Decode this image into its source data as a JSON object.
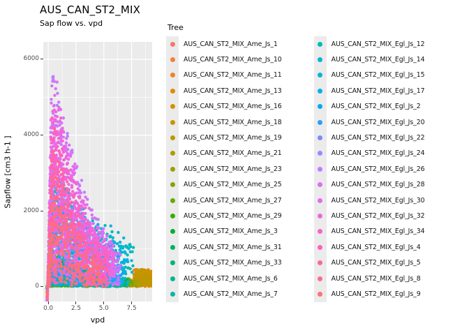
{
  "page": {
    "title": "AUS_CAN_ST2_MIX",
    "subtitle": "Sap flow vs. vpd"
  },
  "chart_data": {
    "type": "scatter",
    "title": "AUS_CAN_ST2_MIX",
    "subtitle": "Sap flow vs. vpd",
    "xlabel": "vpd",
    "ylabel": "Sapflow [cm3 h-1 ]",
    "legend_title": "Tree",
    "legend_position": "right",
    "grid": true,
    "panel_bg": "#EBEBEB",
    "grid_color": "#FFFFFF",
    "tick_color": "#333333",
    "point_radius": 2.2,
    "xlim": [
      -0.45,
      9.35
    ],
    "ylim": [
      -390,
      6460
    ],
    "x_ticks": [
      0.0,
      2.5,
      5.0,
      7.5
    ],
    "x_tick_labels": [
      "0.0",
      "2.5",
      "5.0",
      "7.5"
    ],
    "y_ticks": [
      0,
      2000,
      4000,
      6000
    ],
    "y_tick_labels": [
      "0",
      "2000",
      "4000",
      "6000"
    ],
    "series": [
      {
        "name": "AUS_CAN_ST2_MIX_Ame_Js_1",
        "color": "#F8766D",
        "n": 30,
        "xmax": 4.0,
        "ymax": 380,
        "decay": 5.0,
        "ypow": 1.0,
        "tail": false
      },
      {
        "name": "AUS_CAN_ST2_MIX_Ame_Js_10",
        "color": "#F3803A",
        "n": 170,
        "xmax": 9.35,
        "ymax": 430,
        "decay": 5.5,
        "ypow": 1.15,
        "tail": true
      },
      {
        "name": "AUS_CAN_ST2_MIX_Ame_Js_11",
        "color": "#EB8527",
        "n": 170,
        "xmax": 9.35,
        "ymax": 480,
        "decay": 5.5,
        "ypow": 1.15,
        "tail": true
      },
      {
        "name": "AUS_CAN_ST2_MIX_Ame_Js_13",
        "color": "#E18A00",
        "n": 180,
        "xmax": 9.35,
        "ymax": 540,
        "decay": 5.5,
        "ypow": 1.15,
        "tail": true
      },
      {
        "name": "AUS_CAN_ST2_MIX_Ame_Js_16",
        "color": "#D68F00",
        "n": 180,
        "xmax": 9.35,
        "ymax": 520,
        "decay": 5.0,
        "ypow": 1.15,
        "tail": true
      },
      {
        "name": "AUS_CAN_ST2_MIX_Ame_Js_18",
        "color": "#CA9400",
        "n": 190,
        "xmax": 9.35,
        "ymax": 600,
        "decay": 5.0,
        "ypow": 1.1,
        "tail": true
      },
      {
        "name": "AUS_CAN_ST2_MIX_Ame_Js_19",
        "color": "#BC9800",
        "n": 190,
        "xmax": 9.0,
        "ymax": 640,
        "decay": 4.8,
        "ypow": 1.1,
        "tail": true
      },
      {
        "name": "AUS_CAN_ST2_MIX_Ame_Js_21",
        "color": "#AC9D00",
        "n": 190,
        "xmax": 8.2,
        "ymax": 690,
        "decay": 4.6,
        "ypow": 1.1,
        "tail": false
      },
      {
        "name": "AUS_CAN_ST2_MIX_Ame_Js_23",
        "color": "#99A100",
        "n": 190,
        "xmax": 8.0,
        "ymax": 700,
        "decay": 4.6,
        "ypow": 1.1,
        "tail": false
      },
      {
        "name": "AUS_CAN_ST2_MIX_Ame_Js_25",
        "color": "#83A500",
        "n": 200,
        "xmax": 7.6,
        "ymax": 740,
        "decay": 4.5,
        "ypow": 1.1,
        "tail": false
      },
      {
        "name": "AUS_CAN_ST2_MIX_Ame_Js_27",
        "color": "#66A900",
        "n": 200,
        "xmax": 7.5,
        "ymax": 790,
        "decay": 4.5,
        "ypow": 1.05,
        "tail": false
      },
      {
        "name": "AUS_CAN_ST2_MIX_Ame_Js_29",
        "color": "#38AD00",
        "n": 200,
        "xmax": 7.2,
        "ymax": 800,
        "decay": 4.4,
        "ypow": 1.05,
        "tail": false
      },
      {
        "name": "AUS_CAN_ST2_MIX_Ame_Js_3",
        "color": "#00B02F",
        "n": 190,
        "xmax": 7.0,
        "ymax": 760,
        "decay": 4.4,
        "ypow": 1.05,
        "tail": false
      },
      {
        "name": "AUS_CAN_ST2_MIX_Ame_Js_31",
        "color": "#00B25C",
        "n": 180,
        "xmax": 7.0,
        "ymax": 700,
        "decay": 4.3,
        "ypow": 1.05,
        "tail": false
      },
      {
        "name": "AUS_CAN_ST2_MIX_Ame_Js_33",
        "color": "#00B579",
        "n": 170,
        "xmax": 6.8,
        "ymax": 660,
        "decay": 4.3,
        "ypow": 1.05,
        "tail": false
      },
      {
        "name": "AUS_CAN_ST2_MIX_Ame_Js_6",
        "color": "#00B791",
        "n": 160,
        "xmax": 6.6,
        "ymax": 620,
        "decay": 4.2,
        "ypow": 1.05,
        "tail": false
      },
      {
        "name": "AUS_CAN_ST2_MIX_Ame_Js_7",
        "color": "#00B8A6",
        "n": 160,
        "xmax": 6.6,
        "ymax": 600,
        "decay": 4.2,
        "ypow": 1.05,
        "tail": false
      },
      {
        "name": "AUS_CAN_ST2_MIX_Egl_Js_12",
        "color": "#00B9B9",
        "n": 170,
        "xmax": 7.6,
        "ymax": 2500,
        "decay": 8.0,
        "ypow": 0.8,
        "tail": false
      },
      {
        "name": "AUS_CAN_ST2_MIX_Egl_Js_14",
        "color": "#00B8CB",
        "n": 170,
        "xmax": 7.6,
        "ymax": 2900,
        "decay": 8.0,
        "ypow": 0.8,
        "tail": false
      },
      {
        "name": "AUS_CAN_ST2_MIX_Egl_Js_15",
        "color": "#00B5DB",
        "n": 160,
        "xmax": 7.2,
        "ymax": 2600,
        "decay": 7.0,
        "ypow": 0.8,
        "tail": false
      },
      {
        "name": "AUS_CAN_ST2_MIX_Egl_Js_17",
        "color": "#00B0E9",
        "n": 160,
        "xmax": 7.0,
        "ymax": 2400,
        "decay": 6.0,
        "ypow": 0.8,
        "tail": false
      },
      {
        "name": "AUS_CAN_ST2_MIX_Egl_Js_2",
        "color": "#00A8F5",
        "n": 150,
        "xmax": 6.6,
        "ymax": 2200,
        "decay": 4.5,
        "ypow": 0.8,
        "tail": false
      },
      {
        "name": "AUS_CAN_ST2_MIX_Egl_Js_20",
        "color": "#2C9EFE",
        "n": 150,
        "xmax": 6.6,
        "ymax": 2600,
        "decay": 4.0,
        "ypow": 0.78,
        "tail": false
      },
      {
        "name": "AUS_CAN_ST2_MIX_Egl_Js_22",
        "color": "#768CFF",
        "n": 160,
        "xmax": 6.5,
        "ymax": 3000,
        "decay": 3.8,
        "ypow": 0.78,
        "tail": false
      },
      {
        "name": "AUS_CAN_ST2_MIX_Egl_Js_24",
        "color": "#A383FF",
        "n": 170,
        "xmax": 6.5,
        "ymax": 3600,
        "decay": 3.6,
        "ypow": 0.78,
        "tail": false
      },
      {
        "name": "AUS_CAN_ST2_MIX_Egl_Js_26",
        "color": "#C37BFF",
        "n": 230,
        "xmax": 6.5,
        "ymax": 5600,
        "decay": 3.2,
        "ypow": 0.75,
        "tail": false
      },
      {
        "name": "AUS_CAN_ST2_MIX_Egl_Js_28",
        "color": "#D872F8",
        "n": 230,
        "xmax": 6.3,
        "ymax": 5400,
        "decay": 3.2,
        "ypow": 0.75,
        "tail": false
      },
      {
        "name": "AUS_CAN_ST2_MIX_Egl_Js_30",
        "color": "#E76BEC",
        "n": 230,
        "xmax": 6.2,
        "ymax": 5200,
        "decay": 3.1,
        "ypow": 0.75,
        "tail": false
      },
      {
        "name": "AUS_CAN_ST2_MIX_Egl_Js_32",
        "color": "#F265DD",
        "n": 220,
        "xmax": 6.0,
        "ymax": 5000,
        "decay": 3.0,
        "ypow": 0.75,
        "tail": false
      },
      {
        "name": "AUS_CAN_ST2_MIX_Egl_Js_34",
        "color": "#FA62CB",
        "n": 200,
        "xmax": 5.6,
        "ymax": 4600,
        "decay": 2.9,
        "ypow": 0.78,
        "tail": false
      },
      {
        "name": "AUS_CAN_ST2_MIX_Egl_Js_4",
        "color": "#FF61B7",
        "n": 190,
        "xmax": 5.5,
        "ymax": 4200,
        "decay": 2.8,
        "ypow": 0.8,
        "tail": false
      },
      {
        "name": "AUS_CAN_ST2_MIX_Egl_Js_5",
        "color": "#FF64A2",
        "n": 170,
        "xmax": 5.2,
        "ymax": 3600,
        "decay": 2.7,
        "ypow": 0.82,
        "tail": false
      },
      {
        "name": "AUS_CAN_ST2_MIX_Egl_Js_8",
        "color": "#FF698C",
        "n": 150,
        "xmax": 5.0,
        "ymax": 3000,
        "decay": 2.6,
        "ypow": 0.85,
        "tail": false
      },
      {
        "name": "AUS_CAN_ST2_MIX_Egl_Js_9",
        "color": "#FC7173",
        "n": 130,
        "xmax": 4.6,
        "ymax": 2400,
        "decay": 2.5,
        "ypow": 0.9,
        "tail": false
      }
    ]
  }
}
